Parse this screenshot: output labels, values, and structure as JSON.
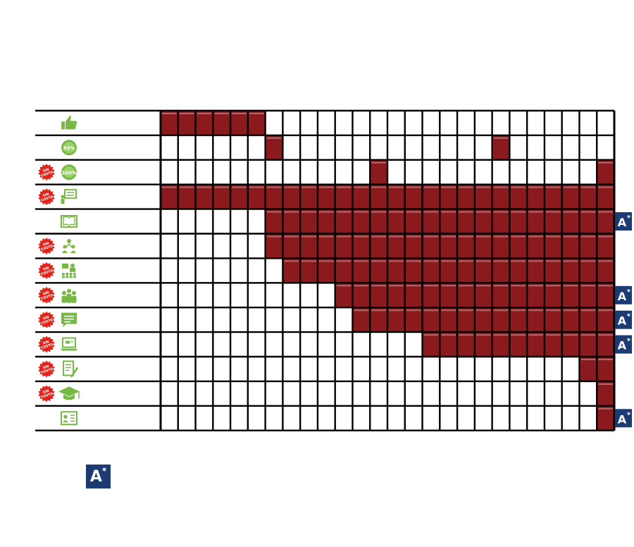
{
  "columns": 26,
  "colors": {
    "grid": "#000000",
    "fill": "#8b1a1f",
    "fill_stripe": "#c9a2a4",
    "icon_green": "#77b944",
    "badge_red": "#e2231a",
    "badge_blue": "#1c3b72"
  },
  "badge": {
    "letter": "A",
    "mark": "*"
  },
  "free_stamp": {
    "line1": "SIN",
    "line2": "COSTO"
  },
  "rows": [
    {
      "icon": "thumbs-up-icon",
      "free": false,
      "badge": false,
      "filled": [
        1,
        2,
        3,
        4,
        5,
        6
      ]
    },
    {
      "icon": "percent-50-icon",
      "label": "50%",
      "free": false,
      "badge": false,
      "filled": [
        7,
        20
      ]
    },
    {
      "icon": "percent-100-icon",
      "label": "100%",
      "free": true,
      "badge": false,
      "filled": [
        13,
        26
      ]
    },
    {
      "icon": "teacher-board-icon",
      "free": true,
      "badge": false,
      "filled": [
        1,
        2,
        3,
        4,
        5,
        6,
        7,
        8,
        9,
        10,
        11,
        12,
        13,
        14,
        15,
        16,
        17,
        18,
        19,
        20,
        21,
        22,
        23,
        24,
        25,
        26
      ]
    },
    {
      "icon": "open-book-icon",
      "free": false,
      "badge": true,
      "filled": [
        7,
        8,
        9,
        10,
        11,
        12,
        13,
        14,
        15,
        16,
        17,
        18,
        19,
        20,
        21,
        22,
        23,
        24,
        25,
        26
      ]
    },
    {
      "icon": "group-meeting-icon",
      "free": true,
      "badge": false,
      "filled": [
        7,
        8,
        9,
        10,
        11,
        12,
        13,
        14,
        15,
        16,
        17,
        18,
        19,
        20,
        21,
        22,
        23,
        24,
        25,
        26
      ]
    },
    {
      "icon": "classroom-icon",
      "free": true,
      "badge": false,
      "filled": [
        8,
        9,
        10,
        11,
        12,
        13,
        14,
        15,
        16,
        17,
        18,
        19,
        20,
        21,
        22,
        23,
        24,
        25,
        26
      ]
    },
    {
      "icon": "team-icon",
      "free": true,
      "badge": true,
      "filled": [
        11,
        12,
        13,
        14,
        15,
        16,
        17,
        18,
        19,
        20,
        21,
        22,
        23,
        24,
        25,
        26
      ]
    },
    {
      "icon": "chat-message-icon",
      "free": true,
      "badge": true,
      "filled": [
        12,
        13,
        14,
        15,
        16,
        17,
        18,
        19,
        20,
        21,
        22,
        23,
        24,
        25,
        26
      ]
    },
    {
      "icon": "laptop-icon",
      "free": true,
      "badge": true,
      "filled": [
        16,
        17,
        18,
        19,
        20,
        21,
        22,
        23,
        24,
        25,
        26
      ]
    },
    {
      "icon": "exam-paper-icon",
      "free": true,
      "badge": false,
      "filled": [
        25,
        26
      ]
    },
    {
      "icon": "graduation-cap-icon",
      "free": true,
      "badge": false,
      "filled": [
        26
      ]
    },
    {
      "icon": "certificate-id-icon",
      "free": false,
      "badge": true,
      "filled": [
        26
      ]
    }
  ]
}
